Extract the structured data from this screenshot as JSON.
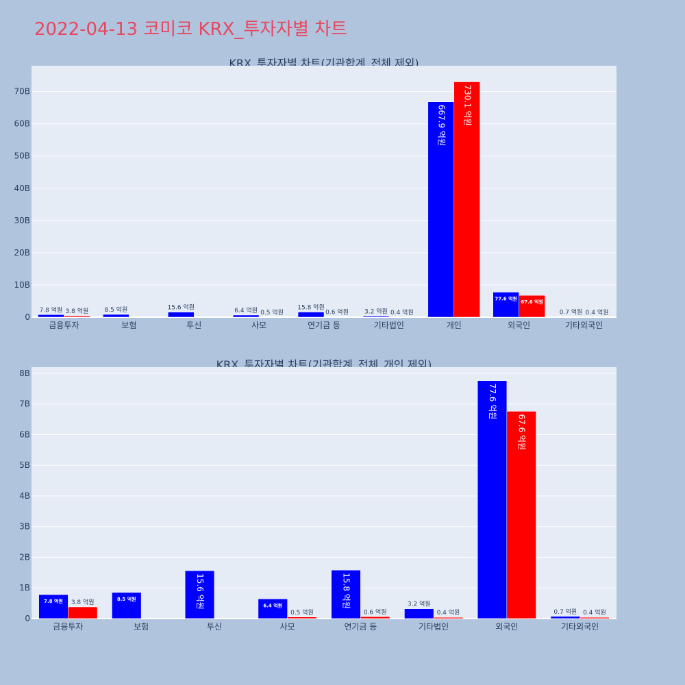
{
  "page": {
    "title": "2022-04-13 코미코 KRX_투자자별 차트"
  },
  "colors": {
    "background": "#b0c4de",
    "plot_bg": "#e5ecf6",
    "series_a": "#0000ff",
    "series_b": "#ff0000",
    "title": "#e8475f"
  },
  "chart_data": [
    {
      "type": "bar",
      "title": "KRX_투자자별 차트(기관합계_전체 제외)",
      "categories": [
        "금융투자",
        "보험",
        "투신",
        "사모",
        "연기금 등",
        "기타법인",
        "개인",
        "외국인",
        "기타외국인"
      ],
      "ylim": [
        0,
        78000000000
      ],
      "yticks": [
        0,
        10000000000,
        20000000000,
        30000000000,
        40000000000,
        50000000000,
        60000000000,
        70000000000
      ],
      "ytick_labels": [
        "0",
        "10B",
        "20B",
        "30B",
        "40B",
        "50B",
        "60B",
        "70B"
      ],
      "grid": true,
      "series": [
        {
          "color": "#0000ff",
          "values": [
            780000000,
            850000000,
            1560000000,
            640000000,
            1580000000,
            320000000,
            66790000000,
            7760000000,
            70000000
          ],
          "labels": [
            "7.8 억원",
            "8.5 억원",
            "15.6 억원",
            "6.4 억원",
            "15.8 억원",
            "3.2 억원",
            "667.9 억원",
            "77.6 억원",
            "0.7 억원"
          ]
        },
        {
          "color": "#ff0000",
          "values": [
            380000000,
            null,
            null,
            50000000,
            60000000,
            40000000,
            73010000000,
            6760000000,
            40000000
          ],
          "labels": [
            "3.8 억원",
            null,
            null,
            "0.5 억원",
            "0.6 억원",
            "0.4 억원",
            "730.1 억원",
            "67.6 억원",
            "0.4 억원"
          ]
        }
      ]
    },
    {
      "type": "bar",
      "title": "KRX_투자자별 차트(기관합계_전체_개인 제외)",
      "categories": [
        "금융투자",
        "보험",
        "투신",
        "사모",
        "연기금 등",
        "기타법인",
        "외국인",
        "기타외국인"
      ],
      "ylim": [
        0,
        8200000000
      ],
      "yticks": [
        0,
        1000000000,
        2000000000,
        3000000000,
        4000000000,
        5000000000,
        6000000000,
        7000000000,
        8000000000
      ],
      "ytick_labels": [
        "0",
        "1B",
        "2B",
        "3B",
        "4B",
        "5B",
        "6B",
        "7B",
        "8B"
      ],
      "grid": true,
      "series": [
        {
          "color": "#0000ff",
          "values": [
            780000000,
            850000000,
            1560000000,
            640000000,
            1580000000,
            320000000,
            7760000000,
            70000000
          ],
          "labels": [
            "7.8 억원",
            "8.5 억원",
            "15.6 억원",
            "6.4 억원",
            "15.8 억원",
            "3.2 억원",
            "77.6 억원",
            "0.7 억원"
          ]
        },
        {
          "color": "#ff0000",
          "values": [
            380000000,
            null,
            null,
            50000000,
            60000000,
            40000000,
            6760000000,
            40000000
          ],
          "labels": [
            "3.8 억원",
            null,
            null,
            "0.5 억원",
            "0.6 억원",
            "0.4 억원",
            "67.6 억원",
            "0.4 억원"
          ]
        }
      ]
    }
  ]
}
